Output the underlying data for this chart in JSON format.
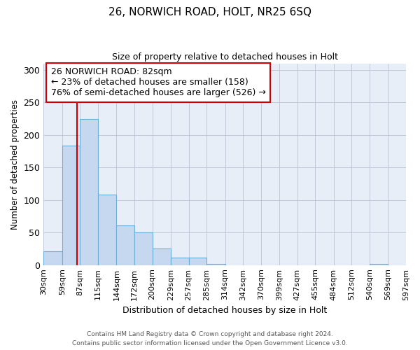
{
  "title": "26, NORWICH ROAD, HOLT, NR25 6SQ",
  "subtitle": "Size of property relative to detached houses in Holt",
  "xlabel": "Distribution of detached houses by size in Holt",
  "ylabel": "Number of detached properties",
  "bar_values": [
    21,
    184,
    224,
    108,
    61,
    50,
    26,
    12,
    12,
    2,
    0,
    0,
    0,
    0,
    0,
    0,
    0,
    0,
    2,
    0
  ],
  "bar_labels": [
    "30sqm",
    "59sqm",
    "87sqm",
    "115sqm",
    "144sqm",
    "172sqm",
    "200sqm",
    "229sqm",
    "257sqm",
    "285sqm",
    "314sqm",
    "342sqm",
    "370sqm",
    "399sqm",
    "427sqm",
    "455sqm",
    "484sqm",
    "512sqm",
    "540sqm",
    "569sqm",
    "597sqm"
  ],
  "bar_color": "#c5d8f0",
  "bar_edge_color": "#6aaed6",
  "ylim": [
    0,
    310
  ],
  "yticks": [
    0,
    50,
    100,
    150,
    200,
    250,
    300
  ],
  "vline_x": 82,
  "vline_color": "#cc0000",
  "annotation_title": "26 NORWICH ROAD: 82sqm",
  "annotation_line1": "← 23% of detached houses are smaller (158)",
  "annotation_line2": "76% of semi-detached houses are larger (526) →",
  "annotation_box_facecolor": "#ffffff",
  "annotation_box_edgecolor": "#cc0000",
  "footer1": "Contains HM Land Registry data © Crown copyright and database right 2024.",
  "footer2": "Contains public sector information licensed under the Open Government Licence v3.0.",
  "fig_bg_color": "#ffffff",
  "plot_bg_color": "#e8eef8",
  "grid_color": "#c0c8d8",
  "bin_edges": [
    30,
    59,
    87,
    115,
    144,
    172,
    200,
    229,
    257,
    285,
    314,
    342,
    370,
    399,
    427,
    455,
    484,
    512,
    540,
    569,
    597
  ]
}
